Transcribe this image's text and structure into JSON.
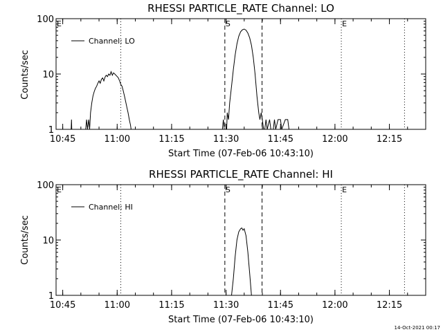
{
  "footer_timestamp": "14-Oct-2021 00:17",
  "chart_data": [
    {
      "type": "line",
      "title": "RHESSI PARTICLE_RATE Channel: LO",
      "xlabel": "Start Time (07-Feb-06 10:43:10)",
      "ylabel": "Counts/sec",
      "yscale": "log",
      "ylim": [
        1,
        100
      ],
      "xlim": [
        "10:43:10",
        "12:25:00"
      ],
      "x_ticks": [
        "10:45",
        "11:00",
        "11:15",
        "11:30",
        "11:45",
        "12:00",
        "12:15"
      ],
      "y_ticks": [
        "1",
        "10",
        "100"
      ],
      "legend": {
        "position": "top-left",
        "entries": [
          "Channel: LO"
        ]
      },
      "markers": [
        {
          "label": "E",
          "time": "10:43:10",
          "style": "dotted"
        },
        {
          "label": "",
          "time": "11:01:00",
          "style": "dotted"
        },
        {
          "label": "S",
          "time": "11:29:40",
          "style": "dashed"
        },
        {
          "label": "",
          "time": "11:39:55",
          "style": "dashed"
        },
        {
          "label": "E",
          "time": "12:01:45",
          "style": "dotted"
        },
        {
          "label": "",
          "time": "12:19:10",
          "style": "dotted"
        }
      ],
      "series": [
        {
          "name": "Channel: LO",
          "segments": [
            [
              [
                "10:47:20",
                1
              ],
              [
                "10:47:25",
                1.5
              ],
              [
                "10:47:30",
                1
              ]
            ],
            [
              [
                "10:51:20",
                1
              ],
              [
                "10:51:35",
                1.5
              ],
              [
                "10:51:50",
                1
              ],
              [
                "10:52:10",
                1.5
              ],
              [
                "10:52:25",
                1
              ],
              [
                "10:52:40",
                2
              ],
              [
                "10:53:00",
                3
              ],
              [
                "10:53:20",
                4
              ],
              [
                "10:53:40",
                4.8
              ],
              [
                "10:54:00",
                5.5
              ],
              [
                "10:54:20",
                6
              ],
              [
                "10:54:40",
                6.8
              ],
              [
                "10:55:00",
                7.5
              ],
              [
                "10:55:20",
                6.8
              ],
              [
                "10:55:40",
                8
              ],
              [
                "10:56:00",
                8.5
              ],
              [
                "10:56:20",
                7.5
              ],
              [
                "10:56:40",
                8.8
              ],
              [
                "10:57:00",
                9.5
              ],
              [
                "10:57:20",
                9
              ],
              [
                "10:57:40",
                10
              ],
              [
                "10:58:00",
                9.5
              ],
              [
                "10:58:20",
                11
              ],
              [
                "10:58:40",
                9.5
              ],
              [
                "10:59:00",
                10.5
              ],
              [
                "10:59:20",
                10
              ],
              [
                "10:59:40",
                9.5
              ],
              [
                "11:00:00",
                9
              ],
              [
                "11:00:20",
                8.5
              ],
              [
                "11:00:40",
                7.5
              ],
              [
                "11:01:00",
                6.5
              ],
              [
                "11:01:20",
                6
              ],
              [
                "11:01:40",
                5
              ],
              [
                "11:02:00",
                4
              ],
              [
                "11:02:20",
                3.2
              ],
              [
                "11:02:40",
                2.5
              ],
              [
                "11:03:00",
                2
              ],
              [
                "11:03:20",
                1.5
              ],
              [
                "11:03:40",
                1.2
              ],
              [
                "11:03:50",
                1
              ]
            ],
            [
              [
                "11:29:00",
                1
              ],
              [
                "11:29:15",
                1.5
              ],
              [
                "11:29:30",
                1
              ]
            ],
            [
              [
                "11:30:10",
                1
              ],
              [
                "11:30:20",
                2
              ],
              [
                "11:30:40",
                1.5
              ],
              [
                "11:31:00",
                3
              ],
              [
                "11:31:30",
                6
              ],
              [
                "11:32:00",
                12
              ],
              [
                "11:32:30",
                22
              ],
              [
                "11:33:00",
                35
              ],
              [
                "11:33:30",
                48
              ],
              [
                "11:34:00",
                58
              ],
              [
                "11:34:30",
                63
              ],
              [
                "11:35:00",
                65
              ],
              [
                "11:35:30",
                62
              ],
              [
                "11:36:00",
                55
              ],
              [
                "11:36:30",
                45
              ],
              [
                "11:37:00",
                33
              ],
              [
                "11:37:30",
                20
              ],
              [
                "11:38:00",
                10
              ],
              [
                "11:38:30",
                4
              ],
              [
                "11:39:00",
                2
              ],
              [
                "11:39:20",
                1.5
              ],
              [
                "11:39:40",
                2
              ],
              [
                "11:40:00",
                1.5
              ],
              [
                "11:40:20",
                1
              ]
            ],
            [
              [
                "11:40:40",
                1
              ],
              [
                "11:41:00",
                1.5
              ],
              [
                "11:41:20",
                1
              ],
              [
                "11:42:00",
                1.5
              ],
              [
                "11:42:20",
                1
              ]
            ],
            [
              [
                "11:43:00",
                1
              ],
              [
                "11:43:20",
                1.5
              ],
              [
                "11:43:40",
                1
              ],
              [
                "11:44:20",
                1.5
              ],
              [
                "11:45:00",
                1.5
              ],
              [
                "11:45:20",
                1
              ],
              [
                "11:46:20",
                1.5
              ],
              [
                "11:47:00",
                1.5
              ],
              [
                "11:47:20",
                1
              ]
            ]
          ]
        }
      ]
    },
    {
      "type": "line",
      "title": "RHESSI PARTICLE_RATE Channel: HI",
      "xlabel": "Start Time (07-Feb-06 10:43:10)",
      "ylabel": "Counts/sec",
      "yscale": "log",
      "ylim": [
        1,
        100
      ],
      "xlim": [
        "10:43:10",
        "12:25:00"
      ],
      "x_ticks": [
        "10:45",
        "11:00",
        "11:15",
        "11:30",
        "11:45",
        "12:00",
        "12:15"
      ],
      "y_ticks": [
        "1",
        "10",
        "100"
      ],
      "legend": {
        "position": "top-left",
        "entries": [
          "Channel: HI"
        ]
      },
      "markers": [
        {
          "label": "E",
          "time": "10:43:10",
          "style": "dotted"
        },
        {
          "label": "",
          "time": "11:01:00",
          "style": "dotted"
        },
        {
          "label": "S",
          "time": "11:29:40",
          "style": "dashed"
        },
        {
          "label": "",
          "time": "11:39:55",
          "style": "dashed"
        },
        {
          "label": "E",
          "time": "12:01:45",
          "style": "dotted"
        },
        {
          "label": "",
          "time": "12:19:10",
          "style": "dotted"
        }
      ],
      "series": [
        {
          "name": "Channel: HI",
          "segments": [
            [
              [
                "11:31:30",
                1
              ],
              [
                "11:32:00",
                2
              ],
              [
                "11:32:30",
                5
              ],
              [
                "11:33:00",
                10
              ],
              [
                "11:33:30",
                14
              ],
              [
                "11:34:00",
                16
              ],
              [
                "11:34:20",
                16.5
              ],
              [
                "11:34:40",
                15
              ],
              [
                "11:35:00",
                16
              ],
              [
                "11:35:30",
                12
              ],
              [
                "11:36:00",
                6
              ],
              [
                "11:36:30",
                2.5
              ],
              [
                "11:37:00",
                1
              ]
            ]
          ]
        }
      ]
    }
  ]
}
